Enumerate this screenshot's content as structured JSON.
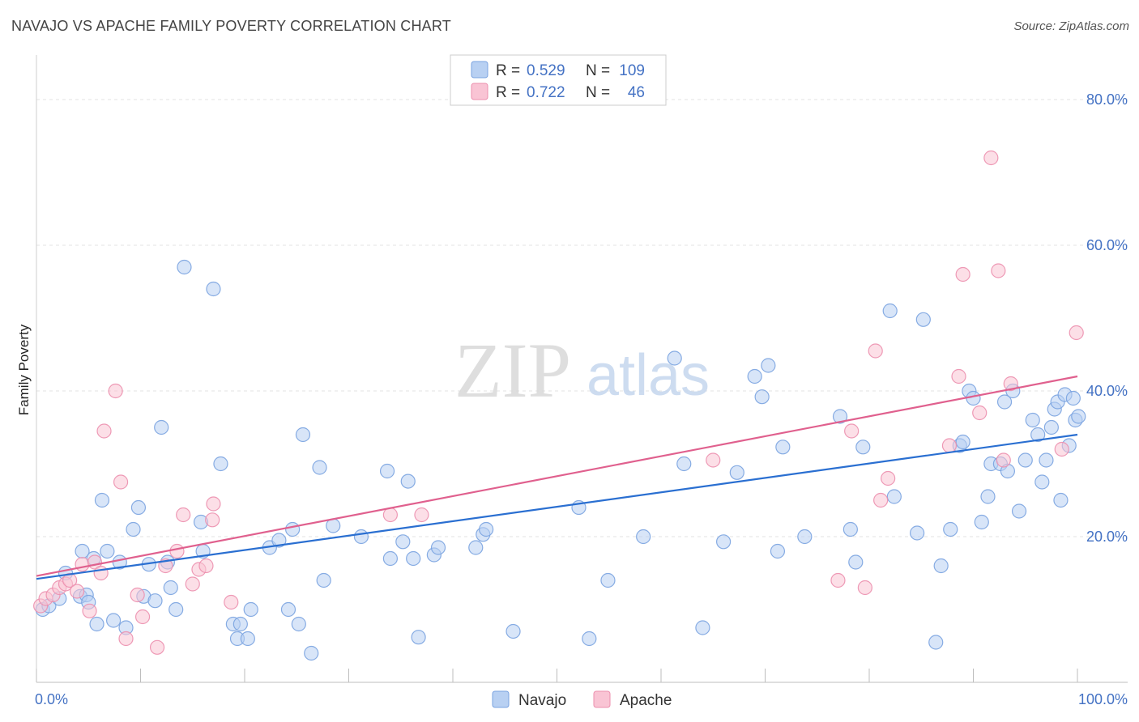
{
  "title": "NAVAJO VS APACHE FAMILY POVERTY CORRELATION CHART",
  "source": "Source: ZipAtlas.com",
  "watermark": {
    "zip": "ZIP",
    "atlas": "atlas"
  },
  "legend": {
    "r_label": "R =",
    "n_label": "N =",
    "entries": [
      {
        "r": "0.529",
        "n": "109",
        "fill": "#b8d0f2",
        "stroke": "#7aa3e0"
      },
      {
        "r": "0.722",
        "n": "46",
        "fill": "#f9c4d4",
        "stroke": "#ec8fae"
      }
    ]
  },
  "chart_data": {
    "type": "scatter",
    "ylabel": "Family Poverty",
    "xlim": [
      0,
      100
    ],
    "ylim": [
      0,
      85
    ],
    "x_tick_labels": [
      "0.0%",
      "100.0%"
    ],
    "y_ticks": [
      20,
      40,
      60,
      80
    ],
    "y_tick_labels": [
      "20.0%",
      "40.0%",
      "60.0%",
      "80.0%"
    ],
    "grid": true,
    "series": [
      {
        "name": "Navajo",
        "color": "#7aa3e0",
        "fill": "#b8d0f2",
        "line_color": "#2a6fd1",
        "trend": [
          [
            0,
            14.2
          ],
          [
            100,
            34.0
          ]
        ],
        "points": [
          [
            0.6,
            10.0
          ],
          [
            1.2,
            10.5
          ],
          [
            2.2,
            11.5
          ],
          [
            2.8,
            15.0
          ],
          [
            4.2,
            11.8
          ],
          [
            4.8,
            12.0
          ],
          [
            4.4,
            18.0
          ],
          [
            5.0,
            11.0
          ],
          [
            5.5,
            17.0
          ],
          [
            5.8,
            8.0
          ],
          [
            6.3,
            25.0
          ],
          [
            6.8,
            18.0
          ],
          [
            7.4,
            8.5
          ],
          [
            8.0,
            16.5
          ],
          [
            8.6,
            7.5
          ],
          [
            9.3,
            21.0
          ],
          [
            9.8,
            24.0
          ],
          [
            10.3,
            11.8
          ],
          [
            10.8,
            16.2
          ],
          [
            11.4,
            11.2
          ],
          [
            12.0,
            35.0
          ],
          [
            12.6,
            16.5
          ],
          [
            12.9,
            13.0
          ],
          [
            13.4,
            10.0
          ],
          [
            14.2,
            57.0
          ],
          [
            15.8,
            22.0
          ],
          [
            16.0,
            18.0
          ],
          [
            17.0,
            54.0
          ],
          [
            17.7,
            30.0
          ],
          [
            18.9,
            8.0
          ],
          [
            19.3,
            6.0
          ],
          [
            19.6,
            8.0
          ],
          [
            20.3,
            6.0
          ],
          [
            20.6,
            10.0
          ],
          [
            22.4,
            18.5
          ],
          [
            23.3,
            19.5
          ],
          [
            24.2,
            10.0
          ],
          [
            24.6,
            21.0
          ],
          [
            25.2,
            8.0
          ],
          [
            25.6,
            34.0
          ],
          [
            26.4,
            4.0
          ],
          [
            27.2,
            29.5
          ],
          [
            27.6,
            14.0
          ],
          [
            28.5,
            21.5
          ],
          [
            31.2,
            20.0
          ],
          [
            33.7,
            29.0
          ],
          [
            34.0,
            17.0
          ],
          [
            35.2,
            19.3
          ],
          [
            35.7,
            27.6
          ],
          [
            36.2,
            17.0
          ],
          [
            36.7,
            6.2
          ],
          [
            38.2,
            17.5
          ],
          [
            38.6,
            18.5
          ],
          [
            42.2,
            18.5
          ],
          [
            42.9,
            20.3
          ],
          [
            43.2,
            21.0
          ],
          [
            45.8,
            7.0
          ],
          [
            52.1,
            24.0
          ],
          [
            53.1,
            6.0
          ],
          [
            54.9,
            14.0
          ],
          [
            58.3,
            20.0
          ],
          [
            61.3,
            44.5
          ],
          [
            62.2,
            30.0
          ],
          [
            64.0,
            7.5
          ],
          [
            66.0,
            19.3
          ],
          [
            67.3,
            28.8
          ],
          [
            69.0,
            42.0
          ],
          [
            69.7,
            39.2
          ],
          [
            70.3,
            43.5
          ],
          [
            71.2,
            18.0
          ],
          [
            71.7,
            32.3
          ],
          [
            73.8,
            20.0
          ],
          [
            77.2,
            36.5
          ],
          [
            78.2,
            21.0
          ],
          [
            78.7,
            16.5
          ],
          [
            79.4,
            32.3
          ],
          [
            82.0,
            51.0
          ],
          [
            82.4,
            25.5
          ],
          [
            84.6,
            20.5
          ],
          [
            85.2,
            49.8
          ],
          [
            86.4,
            5.5
          ],
          [
            86.9,
            16.0
          ],
          [
            87.8,
            21.0
          ],
          [
            88.7,
            32.5
          ],
          [
            89.0,
            33.0
          ],
          [
            89.6,
            40.0
          ],
          [
            90.0,
            39.0
          ],
          [
            90.8,
            22.0
          ],
          [
            91.4,
            25.5
          ],
          [
            91.7,
            30.0
          ],
          [
            92.6,
            30.0
          ],
          [
            93.0,
            38.5
          ],
          [
            93.3,
            29.0
          ],
          [
            93.8,
            40.0
          ],
          [
            94.4,
            23.5
          ],
          [
            95.0,
            30.5
          ],
          [
            95.7,
            36.0
          ],
          [
            96.2,
            34.0
          ],
          [
            97.0,
            30.5
          ],
          [
            97.5,
            35.0
          ],
          [
            97.8,
            37.5
          ],
          [
            98.1,
            38.5
          ],
          [
            98.8,
            39.5
          ],
          [
            99.2,
            32.5
          ],
          [
            99.8,
            36.0
          ],
          [
            100.1,
            36.5
          ],
          [
            99.6,
            39.0
          ],
          [
            98.4,
            25.0
          ],
          [
            96.6,
            27.5
          ]
        ]
      },
      {
        "name": "Apache",
        "color": "#ec8fae",
        "fill": "#f9c4d4",
        "line_color": "#e0608e",
        "trend": [
          [
            0,
            14.6
          ],
          [
            100,
            42.0
          ]
        ],
        "points": [
          [
            0.4,
            10.5
          ],
          [
            0.9,
            11.5
          ],
          [
            1.6,
            12.0
          ],
          [
            2.2,
            13.0
          ],
          [
            2.8,
            13.5
          ],
          [
            3.2,
            14.0
          ],
          [
            3.9,
            12.5
          ],
          [
            4.4,
            16.2
          ],
          [
            5.1,
            9.8
          ],
          [
            5.6,
            16.5
          ],
          [
            6.2,
            15.0
          ],
          [
            6.5,
            34.5
          ],
          [
            7.6,
            40.0
          ],
          [
            8.1,
            27.5
          ],
          [
            8.6,
            6.0
          ],
          [
            9.7,
            12.0
          ],
          [
            10.2,
            9.0
          ],
          [
            11.6,
            4.8
          ],
          [
            12.4,
            16.0
          ],
          [
            13.5,
            18.0
          ],
          [
            14.1,
            23.0
          ],
          [
            15.0,
            13.5
          ],
          [
            15.6,
            15.5
          ],
          [
            16.3,
            16.0
          ],
          [
            16.9,
            22.3
          ],
          [
            17.0,
            24.5
          ],
          [
            18.7,
            11.0
          ],
          [
            34.0,
            23.0
          ],
          [
            37.0,
            23.0
          ],
          [
            65.0,
            30.5
          ],
          [
            77.0,
            14.0
          ],
          [
            78.3,
            34.5
          ],
          [
            79.6,
            13.0
          ],
          [
            80.6,
            45.5
          ],
          [
            81.1,
            25.0
          ],
          [
            81.8,
            28.0
          ],
          [
            87.7,
            32.5
          ],
          [
            88.6,
            42.0
          ],
          [
            89.0,
            56.0
          ],
          [
            90.6,
            37.0
          ],
          [
            92.4,
            56.5
          ],
          [
            92.9,
            30.5
          ],
          [
            93.6,
            41.0
          ],
          [
            91.7,
            72.0
          ],
          [
            98.5,
            32.0
          ],
          [
            99.9,
            48.0
          ]
        ]
      }
    ]
  }
}
